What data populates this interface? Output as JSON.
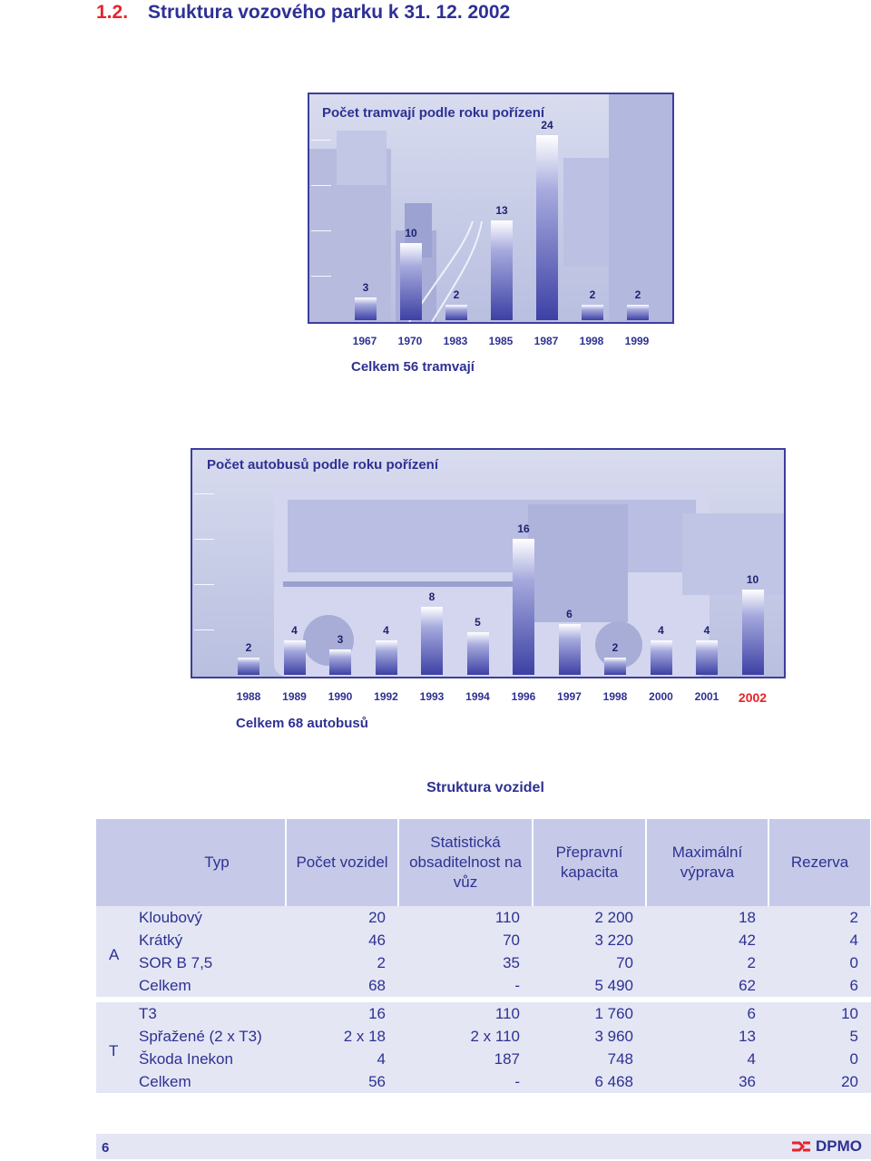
{
  "page": {
    "section_number": "1.2.",
    "section_title": "Struktura vozového parku k 31. 12. 2002",
    "page_number": "6",
    "logo_text": "DPMO"
  },
  "colors": {
    "accent_red": "#e8232a",
    "brand_blue": "#2e3192",
    "chart_bg": "#c6cbe6"
  },
  "chart_data": [
    {
      "type": "bar",
      "title": "Počet tramvají podle roku pořízení",
      "categories": [
        "1967",
        "1970",
        "1983",
        "1985",
        "1987",
        "1998",
        "1999"
      ],
      "values": [
        3,
        10,
        2,
        13,
        24,
        2,
        2
      ],
      "xlabel": "",
      "ylabel": "",
      "total_label": "Celkem 56 tramvají",
      "legend": "none",
      "grid": false
    },
    {
      "type": "bar",
      "title": "Počet autobusů podle roku pořízení",
      "categories": [
        "1988",
        "1989",
        "1990",
        "1992",
        "1993",
        "1994",
        "1996",
        "1997",
        "1998",
        "2000",
        "2001",
        "2002"
      ],
      "values": [
        2,
        4,
        3,
        4,
        8,
        5,
        16,
        6,
        2,
        4,
        4,
        10
      ],
      "highlight_category": "2002",
      "xlabel": "",
      "ylabel": "",
      "total_label": "Celkem 68 autobusů",
      "legend": "none",
      "grid": false
    }
  ],
  "table": {
    "title": "Struktura vozidel",
    "headers": [
      "Typ",
      "Počet vozidel",
      "Statistická obsaditelnost na vůz",
      "Přepravní kapacita",
      "Maximální výprava",
      "Rezerva"
    ],
    "groups": [
      {
        "label": "A",
        "rows": [
          [
            "Kloubový",
            "20",
            "110",
            "2 200",
            "18",
            "2"
          ],
          [
            "Krátký",
            "46",
            "70",
            "3 220",
            "42",
            "4"
          ],
          [
            "SOR B 7,5",
            "2",
            "35",
            "70",
            "2",
            "0"
          ],
          [
            "Celkem",
            "68",
            "-",
            "5 490",
            "62",
            "6"
          ]
        ]
      },
      {
        "label": "T",
        "rows": [
          [
            "T3",
            "16",
            "110",
            "1 760",
            "6",
            "10"
          ],
          [
            "Spřažené (2 x T3)",
            "2 x 18",
            "2 x 110",
            "3 960",
            "13",
            "5"
          ],
          [
            "Škoda Inekon",
            "4",
            "187",
            "748",
            "4",
            "0"
          ],
          [
            "Celkem",
            "56",
            "-",
            "6 468",
            "36",
            "20"
          ]
        ]
      }
    ]
  }
}
